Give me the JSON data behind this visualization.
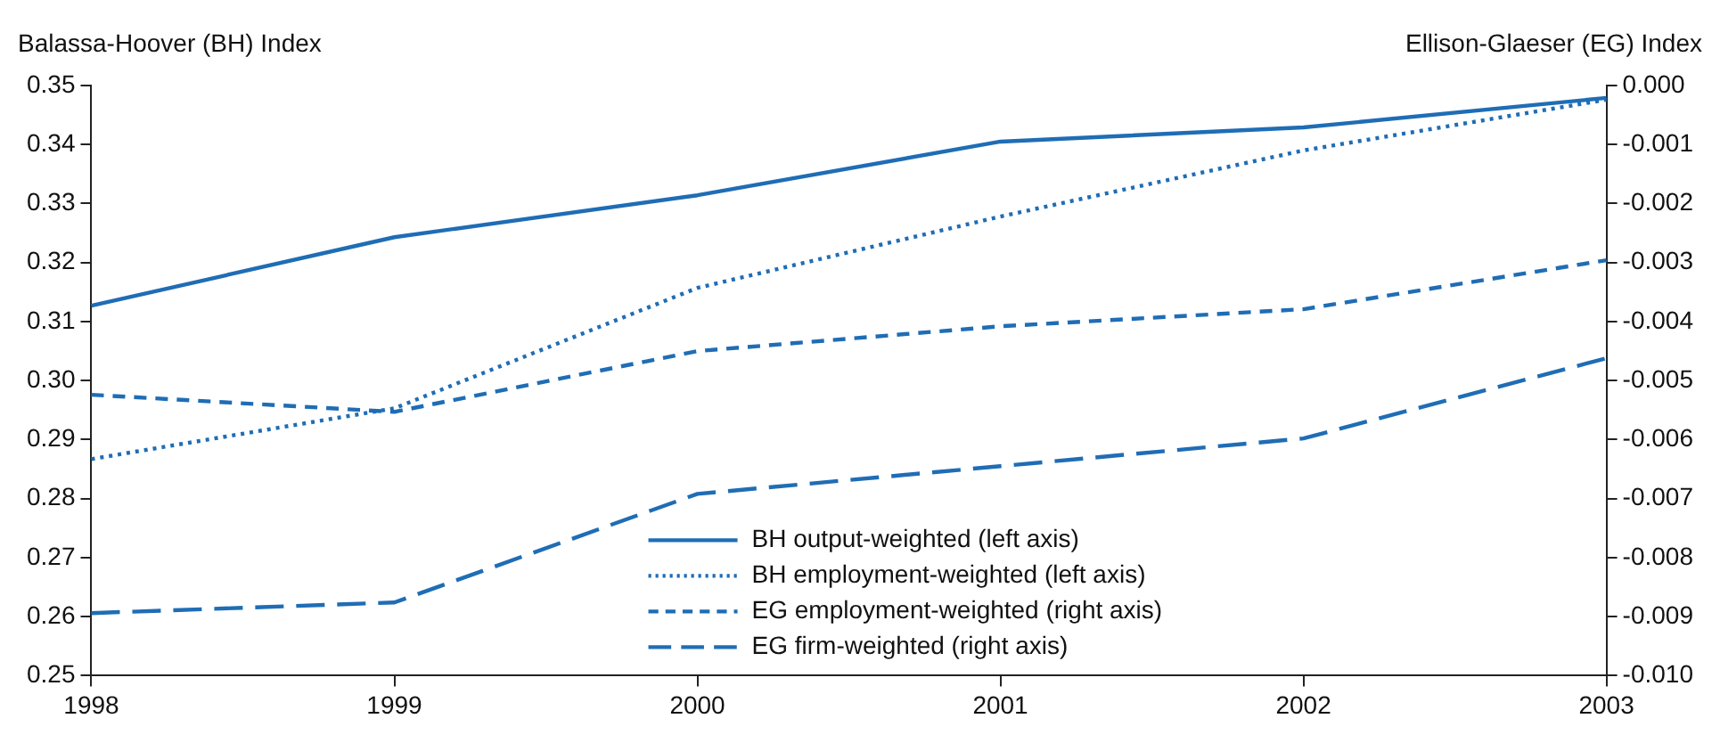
{
  "chart_data": {
    "type": "line",
    "ylabel": "Balassa-Hoover (BH) Index",
    "y2label": "Ellison-Glaeser (EG) Index",
    "categories": [
      "1998",
      "1999",
      "2000",
      "2001",
      "2002",
      "2003"
    ],
    "series": [
      {
        "name": "BH output-weighted (left axis)",
        "color": "#1f6db5",
        "line_style": "solid",
        "axis": "y",
        "values": [
          0.3127,
          0.3243,
          0.3314,
          0.3405,
          0.3429,
          0.3479
        ]
      },
      {
        "name": "BH employment-weighted (left axis)",
        "color": "#1f6db5",
        "line_style": "dotted",
        "axis": "y",
        "values": [
          0.2867,
          0.2953,
          0.3157,
          0.3278,
          0.339,
          0.3476
        ]
      },
      {
        "name": "EG employment-weighted (right axis)",
        "color": "#1f6db5",
        "line_style": "dashed",
        "axis": "y2",
        "values": [
          -0.00524,
          -0.00553,
          -0.0045,
          -0.00408,
          -0.00379,
          -0.00296
        ]
      },
      {
        "name": "EG firm-weighted (right axis)",
        "color": "#1f6db5",
        "line_style": "dashed",
        "axis": "y2",
        "values": [
          -0.00894,
          -0.00876,
          -0.00692,
          -0.00645,
          -0.00598,
          -0.00462
        ]
      }
    ],
    "ylim": [
      0.25,
      0.35
    ],
    "yticks": [
      0.25,
      0.26,
      0.27,
      0.28,
      0.29,
      {
        "value": 0.3,
        "label": "0.30"
      },
      0.31,
      0.32,
      0.33,
      0.34,
      0.35
    ],
    "y2lim": [
      -0.01,
      0
    ],
    "y2ticks": [
      {
        "value": -0.01,
        "label": "-0.010"
      },
      {
        "value": -0.009,
        "label": "-0.009"
      },
      {
        "value": -0.008,
        "label": "-0.008"
      },
      {
        "value": -0.007,
        "label": "-0.007"
      },
      {
        "value": -0.006,
        "label": "-0.006"
      },
      {
        "value": -0.005,
        "label": "-0.005"
      },
      {
        "value": -0.004,
        "label": "-0.004"
      },
      {
        "value": -0.003,
        "label": "-0.003"
      },
      {
        "value": -0.002,
        "label": "-0.002"
      },
      {
        "value": -0.001,
        "label": "-0.001"
      },
      {
        "value": 0,
        "label": "0.000"
      }
    ],
    "grid": false,
    "legend": "bottom",
    "marker": "none"
  }
}
